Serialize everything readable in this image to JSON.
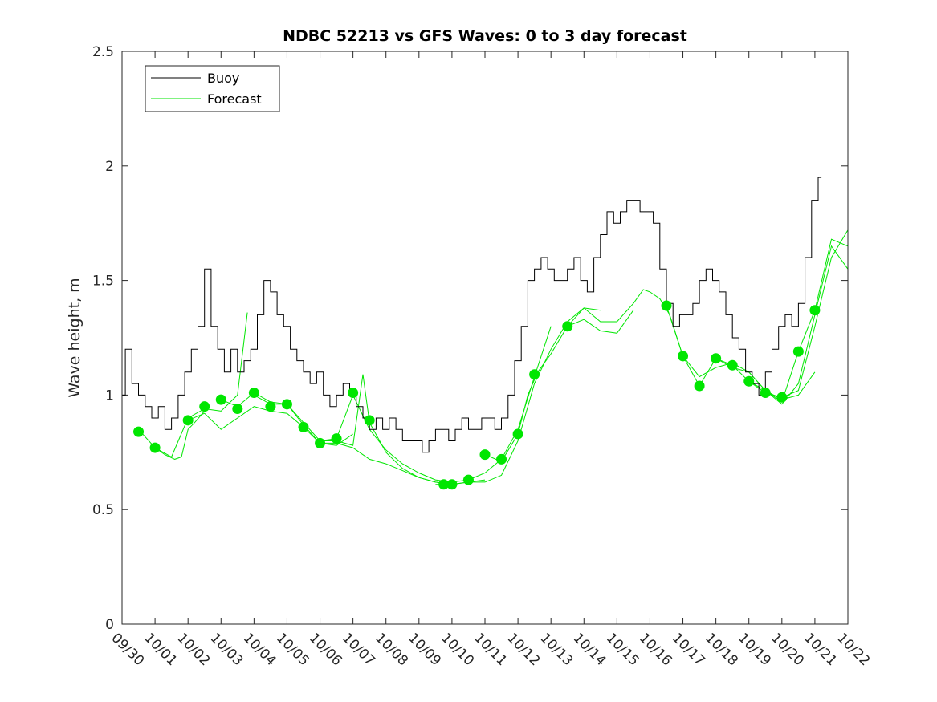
{
  "chart_data": {
    "type": "line",
    "title": "NDBC 52213 vs GFS Waves: 0 to 3 day forecast",
    "ylabel": "Wave height, m",
    "xlabel": "",
    "xlim": [
      0,
      22
    ],
    "ylim": [
      0,
      2.5
    ],
    "yticks": [
      0,
      0.5,
      1,
      1.5,
      2,
      2.5
    ],
    "ytick_labels": [
      "0",
      "0.5",
      "1",
      "1.5",
      "2",
      "2.5"
    ],
    "xtick_labels": [
      "09/30",
      "10/01",
      "10/02",
      "10/03",
      "10/04",
      "10/05",
      "10/06",
      "10/07",
      "10/08",
      "10/09",
      "10/10",
      "10/11",
      "10/12",
      "10/13",
      "10/14",
      "10/15",
      "10/16",
      "10/17",
      "10/18",
      "10/19",
      "10/20",
      "10/21",
      "10/22"
    ],
    "legend": {
      "position": "top-left",
      "entries": [
        "Buoy",
        "Forecast"
      ]
    },
    "grid": false,
    "colors": {
      "buoy": "#000000",
      "forecast": "#00e600"
    },
    "buoy": {
      "name": "Buoy",
      "x": [
        0,
        0.2,
        0.4,
        0.6,
        0.8,
        1.0,
        1.2,
        1.4,
        1.6,
        1.8,
        2.0,
        2.2,
        2.4,
        2.6,
        2.8,
        3.0,
        3.2,
        3.4,
        3.6,
        3.8,
        4.0,
        4.2,
        4.4,
        4.6,
        4.8,
        5.0,
        5.2,
        5.4,
        5.6,
        5.8,
        6.0,
        6.2,
        6.4,
        6.6,
        6.8,
        7.0,
        7.2,
        7.4,
        7.6,
        7.8,
        8.0,
        8.2,
        8.4,
        8.6,
        8.8,
        9.0,
        9.2,
        9.4,
        9.6,
        9.8,
        10.0,
        10.2,
        10.4,
        10.6,
        10.8,
        11.0,
        11.2,
        11.4,
        11.6,
        11.8,
        12.0,
        12.2,
        12.4,
        12.6,
        12.8,
        13.0,
        13.2,
        13.4,
        13.6,
        13.8,
        14.0,
        14.2,
        14.4,
        14.6,
        14.8,
        15.0,
        15.2,
        15.4,
        15.6,
        15.8,
        16.0,
        16.2,
        16.4,
        16.6,
        16.8,
        17.0,
        17.2,
        17.4,
        17.6,
        17.8,
        18.0,
        18.2,
        18.4,
        18.6,
        18.8,
        19.0,
        19.2,
        19.4,
        19.6,
        19.8,
        20.0,
        20.2,
        20.4,
        20.6,
        20.8,
        21.0,
        21.2
      ],
      "y": [
        1.0,
        1.2,
        1.05,
        1.0,
        0.95,
        0.9,
        0.95,
        0.85,
        0.9,
        1.0,
        1.1,
        1.2,
        1.3,
        1.55,
        1.3,
        1.2,
        1.1,
        1.2,
        1.1,
        1.15,
        1.2,
        1.35,
        1.5,
        1.45,
        1.35,
        1.3,
        1.2,
        1.15,
        1.1,
        1.05,
        1.1,
        1.0,
        0.95,
        1.0,
        1.05,
        1.0,
        0.95,
        0.9,
        0.85,
        0.9,
        0.85,
        0.9,
        0.85,
        0.8,
        0.8,
        0.8,
        0.75,
        0.8,
        0.85,
        0.85,
        0.8,
        0.85,
        0.9,
        0.85,
        0.85,
        0.9,
        0.9,
        0.85,
        0.9,
        1.0,
        1.15,
        1.3,
        1.5,
        1.55,
        1.6,
        1.55,
        1.5,
        1.5,
        1.55,
        1.6,
        1.5,
        1.45,
        1.6,
        1.7,
        1.8,
        1.75,
        1.8,
        1.85,
        1.85,
        1.8,
        1.8,
        1.75,
        1.55,
        1.4,
        1.3,
        1.35,
        1.35,
        1.4,
        1.5,
        1.55,
        1.5,
        1.45,
        1.35,
        1.25,
        1.2,
        1.1,
        1.05,
        1.0,
        1.1,
        1.2,
        1.3,
        1.35,
        1.3,
        1.4,
        1.6,
        1.85,
        1.95
      ]
    },
    "forecast_runs": [
      {
        "x": [
          0.5,
          1.0,
          1.3,
          1.6,
          1.8,
          2.0,
          2.2,
          2.5
        ],
        "y": [
          0.85,
          0.77,
          0.74,
          0.72,
          0.73,
          0.85,
          0.88,
          0.93
        ]
      },
      {
        "x": [
          1.0,
          1.5,
          2.0,
          2.5,
          3.0,
          3.5,
          3.8
        ],
        "y": [
          0.77,
          0.73,
          0.9,
          0.94,
          0.93,
          1.0,
          1.36
        ]
      },
      {
        "x": [
          2.0,
          2.5,
          3.0,
          3.5,
          4.0,
          4.5,
          5.0,
          5.5,
          6.0,
          6.5,
          7.0
        ],
        "y": [
          0.89,
          0.92,
          0.85,
          0.9,
          0.95,
          0.93,
          0.92,
          0.86,
          0.79,
          0.78,
          0.83
        ]
      },
      {
        "x": [
          3.0,
          3.5,
          4.0,
          4.5,
          5.0,
          5.5,
          6.0,
          6.5,
          7.0,
          7.5,
          8.0,
          8.5,
          9.0,
          9.5,
          10.0
        ],
        "y": [
          0.98,
          0.95,
          1.01,
          0.97,
          0.96,
          0.87,
          0.79,
          0.79,
          0.77,
          0.72,
          0.7,
          0.67,
          0.64,
          0.62,
          0.61
        ]
      },
      {
        "x": [
          4.0,
          4.5,
          5.0,
          5.5,
          6.0,
          6.5,
          7.0,
          7.3,
          7.5,
          8.0,
          8.5,
          9.0,
          9.5,
          10.0,
          10.5,
          11.0
        ],
        "y": [
          1.0,
          0.96,
          0.96,
          0.88,
          0.8,
          0.8,
          0.78,
          1.09,
          0.88,
          0.75,
          0.68,
          0.64,
          0.62,
          0.61,
          0.62,
          0.63
        ]
      },
      {
        "x": [
          6.0,
          6.5,
          7.0,
          7.5,
          8.0,
          8.5,
          9.0,
          9.5,
          10.0,
          10.5,
          11.0,
          11.5,
          12.0,
          12.5,
          13.0
        ],
        "y": [
          0.8,
          0.81,
          1.0,
          0.85,
          0.76,
          0.7,
          0.66,
          0.63,
          0.62,
          0.63,
          0.66,
          0.72,
          0.85,
          1.08,
          1.3
        ]
      },
      {
        "x": [
          9.5,
          10.0,
          10.5,
          11.0,
          11.5,
          12.0,
          12.5,
          13.0,
          13.5,
          14.0,
          14.5
        ],
        "y": [
          0.61,
          0.61,
          0.62,
          0.62,
          0.65,
          0.8,
          1.05,
          1.2,
          1.32,
          1.38,
          1.37
        ]
      },
      {
        "x": [
          11.0,
          11.5,
          12.0,
          12.3,
          12.6,
          13.0,
          13.5,
          14.0,
          14.5,
          15.0,
          15.5
        ],
        "y": [
          0.74,
          0.71,
          0.83,
          1.0,
          1.1,
          1.18,
          1.3,
          1.33,
          1.28,
          1.27,
          1.37
        ]
      },
      {
        "x": [
          13.5,
          14.0,
          14.5,
          15.0,
          15.5,
          15.8,
          16.0,
          16.3,
          16.6,
          17.0,
          17.5,
          18.0,
          18.5,
          19.0,
          19.5,
          20.0,
          20.5,
          21.0
        ],
        "y": [
          1.3,
          1.38,
          1.32,
          1.32,
          1.4,
          1.46,
          1.45,
          1.42,
          1.35,
          1.17,
          1.08,
          1.12,
          1.14,
          1.1,
          1.02,
          0.98,
          1.0,
          1.1
        ]
      },
      {
        "x": [
          16.5,
          17.0,
          17.5,
          18.0,
          18.5,
          19.0,
          19.5,
          20.0,
          20.5,
          21.0,
          21.5,
          22.0
        ],
        "y": [
          1.39,
          1.17,
          1.04,
          1.16,
          1.13,
          1.06,
          1.01,
          0.99,
          1.02,
          1.3,
          1.6,
          1.72
        ]
      },
      {
        "x": [
          18.0,
          18.5,
          19.0,
          19.5,
          20.0,
          20.5,
          21.0,
          21.5,
          22.0
        ],
        "y": [
          1.16,
          1.12,
          1.1,
          1.02,
          0.96,
          1.05,
          1.35,
          1.65,
          1.55
        ]
      },
      {
        "x": [
          19.0,
          19.5,
          20.0,
          20.5,
          21.0,
          21.5,
          22.0
        ],
        "y": [
          1.06,
          1.02,
          0.97,
          1.19,
          1.37,
          1.68,
          1.65
        ]
      }
    ],
    "forecast_markers": {
      "x": [
        0.5,
        1.0,
        2.0,
        2.5,
        3.0,
        3.5,
        4.0,
        4.5,
        5.0,
        5.5,
        6.0,
        6.5,
        7.0,
        7.5,
        9.75,
        10.0,
        10.5,
        11.0,
        11.5,
        12.0,
        12.5,
        13.5,
        16.5,
        17.0,
        17.5,
        18.0,
        18.5,
        19.0,
        19.5,
        20.0,
        20.5,
        21.0
      ],
      "y": [
        0.84,
        0.77,
        0.89,
        0.95,
        0.98,
        0.94,
        1.01,
        0.95,
        0.96,
        0.86,
        0.79,
        0.81,
        1.01,
        0.89,
        0.61,
        0.61,
        0.63,
        0.74,
        0.72,
        0.83,
        1.09,
        1.3,
        1.39,
        1.17,
        1.04,
        1.16,
        1.13,
        1.06,
        1.01,
        0.99,
        1.19,
        1.37
      ]
    }
  }
}
